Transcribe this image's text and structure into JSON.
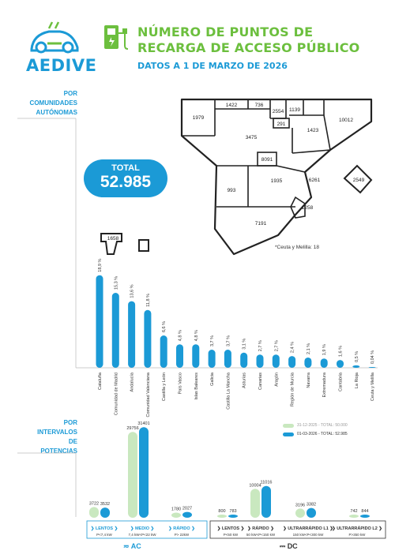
{
  "logo": {
    "text": "AEDIVE"
  },
  "header": {
    "title_line1": "NÚMERO DE PUNTOS DE",
    "title_line2": "RECARGA DE ACCESO PÚBLICO",
    "subtitle": "DATOS A 1 DE MARZO DE 2026"
  },
  "sections": {
    "ccaa_line1": "POR",
    "ccaa_line2": "COMUNIDADES",
    "ccaa_line3": "AUTÓNOMAS",
    "power_line1": "POR",
    "power_line2": "INTERVALOS",
    "power_line3": "DE",
    "power_line4": "POTENCIAS"
  },
  "total": {
    "label": "TOTAL",
    "value": "52.985"
  },
  "map": {
    "labels": [
      "1422",
      "736",
      "2554",
      "1139",
      "1979",
      "291",
      "3475",
      "1423",
      "10012",
      "8091",
      "1935",
      "6261",
      "993",
      "1258",
      "2549",
      "7191",
      "1658"
    ],
    "ceuta_note": "*Ceuta y Melilla: 18"
  },
  "chart_data": [
    {
      "type": "bar",
      "title": "",
      "categories": [
        "Cataluña",
        "Comunidad de Madrid",
        "Andalucía",
        "Comunidad Valenciana",
        "Castilla y León",
        "País Vasco",
        "Islas Baleares",
        "Galicia",
        "Castilla La Mancha",
        "Asturias",
        "Canarias",
        "Aragón",
        "Región de Murcia",
        "Navarra",
        "Extremadura",
        "Cantabria",
        "La Rioja",
        "Ceuta y Melilla"
      ],
      "values": [
        18.9,
        15.3,
        13.6,
        11.8,
        6.6,
        4.8,
        4.8,
        3.7,
        3.7,
        3.1,
        2.7,
        2.7,
        2.4,
        2.1,
        1.9,
        1.6,
        0.5,
        0.04
      ],
      "value_labels": [
        "18,9 %",
        "15,3 %",
        "13,6 %",
        "11,8 %",
        "6,6 %",
        "4,8 %",
        "4,8 %",
        "3,7 %",
        "3,7 %",
        "3,1 %",
        "2,7 %",
        "2,7 %",
        "2,4 %",
        "2,1 %",
        "1,9 %",
        "1,6 %",
        "0,5 %",
        "0,04 %"
      ],
      "unit": "%",
      "color": "#1b9ad6"
    },
    {
      "type": "bar",
      "title": "",
      "categories": [
        "LENTOS",
        "MEDIO",
        "RÁPIDO",
        "LENTOS",
        "RÁPIDO",
        "ULTRARRÁPIDO L1",
        "ULTRARRÁPIDO L2"
      ],
      "category_ranges": [
        "P<7,4 kW",
        "7,4 kW<P<22 kW",
        "P> 22kW",
        "P<50 kW",
        "50 kW<P<150 kW",
        "150 kW<P<300 kW",
        "P>350 kW"
      ],
      "groups": [
        "AC",
        "DC"
      ],
      "series": [
        {
          "name": "31-12-2025 - TOTAL: 50.000",
          "color": "#c9e8bf",
          "values": [
            3722,
            29756,
            1780,
            800,
            10004,
            3196,
            742
          ]
        },
        {
          "name": "01-03-2026 - TOTAL: 52.985",
          "color": "#1b9ad6",
          "values": [
            3532,
            31401,
            2027,
            783,
            11016,
            3382,
            844
          ]
        }
      ]
    }
  ]
}
